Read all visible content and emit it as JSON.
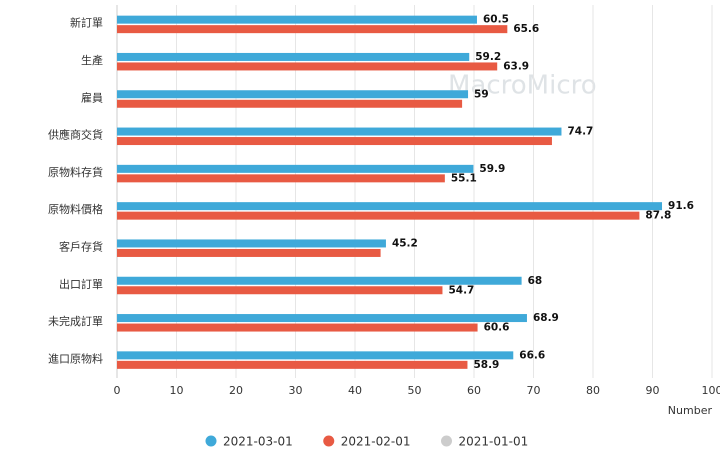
{
  "chart_data": {
    "type": "bar",
    "orientation": "horizontal",
    "watermark": "MacroMicro",
    "categories": [
      "新訂單",
      "生產",
      "雇員",
      "供應商交貨",
      "原物料存貨",
      "原物料價格",
      "客戶存貨",
      "出口訂單",
      "未完成訂單",
      "進口原物料"
    ],
    "series": [
      {
        "name": "2021-03-01",
        "color": "#3fa9d9",
        "visible": true,
        "values": [
          60.5,
          59.2,
          59,
          74.7,
          59.9,
          91.6,
          45.2,
          68,
          68.9,
          66.6
        ]
      },
      {
        "name": "2021-02-01",
        "color": "#e85a43",
        "visible": true,
        "values": [
          65.6,
          63.9,
          58,
          73.1,
          55.1,
          87.8,
          44.3,
          54.7,
          60.6,
          58.9
        ],
        "value_labels": [
          "65.6",
          "63.9",
          null,
          null,
          "55.1",
          "87.8",
          null,
          "54.7",
          "60.6",
          "58.9"
        ]
      },
      {
        "name": "2021-01-01",
        "color": "#cccccc",
        "visible": false,
        "values": [
          null,
          null,
          null,
          null,
          null,
          null,
          null,
          null,
          null,
          null
        ]
      }
    ],
    "xlabel": "Number",
    "xlim": [
      0,
      100
    ],
    "xticks": [
      0,
      10,
      20,
      30,
      40,
      50,
      60,
      70,
      80,
      90,
      100
    ],
    "grid": true,
    "legend": "bottom"
  }
}
